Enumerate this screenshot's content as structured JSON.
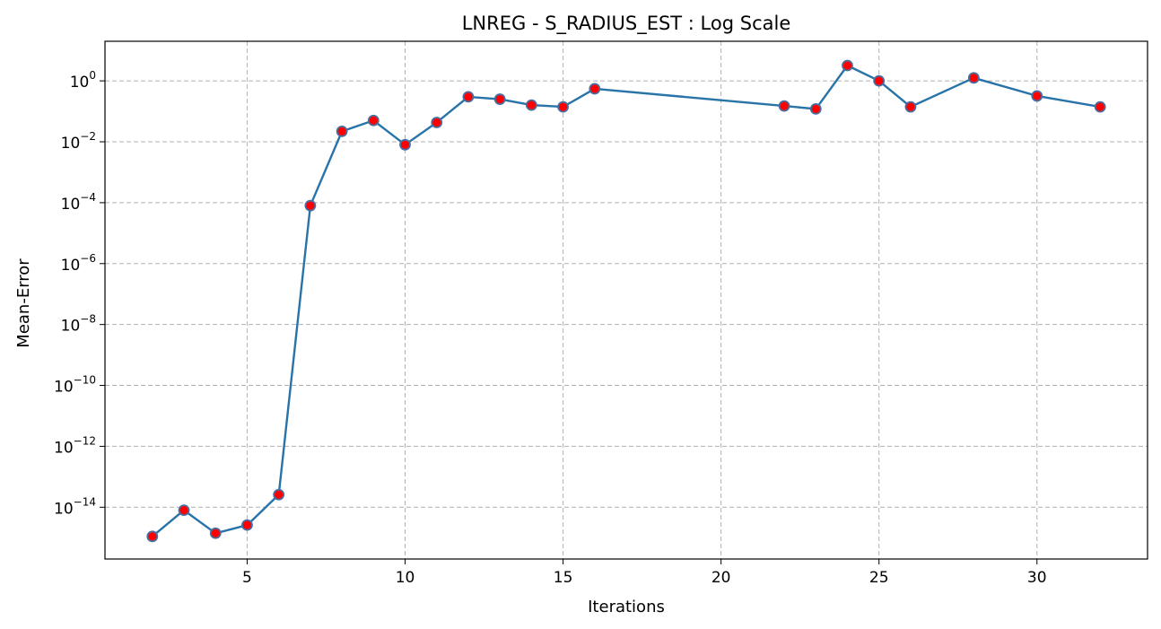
{
  "chart_data": {
    "type": "line",
    "title": "LNREG - S_RADIUS_EST : Log Scale",
    "xlabel": "Iterations",
    "ylabel": "Mean-Error",
    "yscale": "log",
    "grid": true,
    "xlim": [
      0.5,
      33.5
    ],
    "ylim_exponent": [
      -15.7,
      1.3
    ],
    "x_ticks": [
      5,
      10,
      15,
      20,
      25,
      30
    ],
    "y_tick_exponents": [
      0,
      -2,
      -4,
      -6,
      -8,
      -10,
      -12,
      -14
    ],
    "line_color": "#2873a8",
    "marker_color": "#ff0000",
    "marker_edge_color": "#4a6ea0",
    "series": [
      {
        "x": [
          2,
          3,
          4,
          5,
          6,
          7,
          8,
          9,
          10,
          11,
          12,
          13,
          14,
          15,
          16,
          22,
          23,
          24,
          25,
          26,
          28,
          30,
          32
        ],
        "y": [
          1.1e-15,
          8e-15,
          1.4e-15,
          2.6e-15,
          2.6e-14,
          8e-05,
          0.022,
          0.05,
          0.008,
          0.043,
          0.3,
          0.25,
          0.16,
          0.14,
          0.55,
          0.15,
          0.12,
          3.2,
          1.0,
          0.14,
          1.25,
          0.32,
          0.14
        ]
      }
    ]
  }
}
